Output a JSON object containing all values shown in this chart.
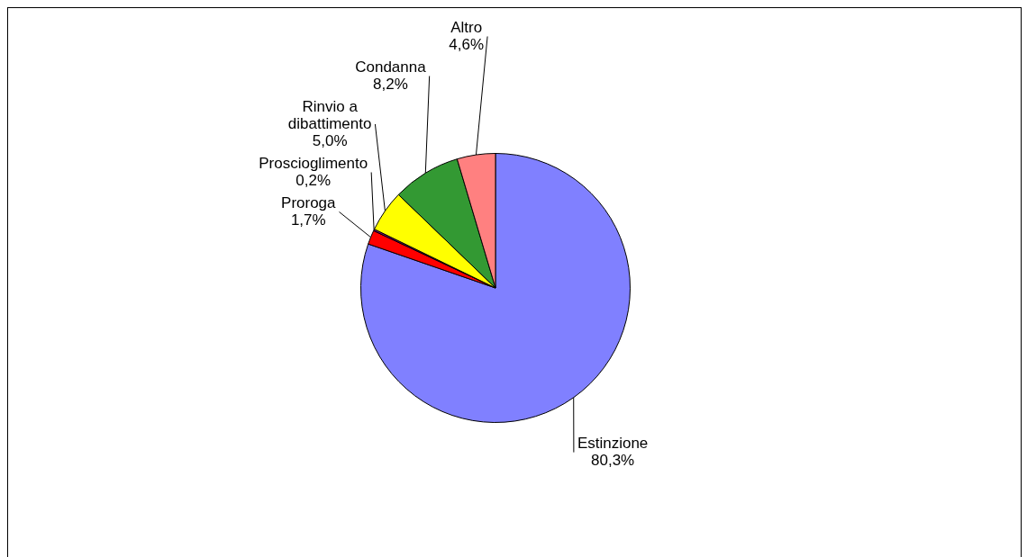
{
  "chart_data": {
    "type": "pie",
    "categories": [
      "Estinzione",
      "Proroga",
      "Proscioglimento",
      "Rinvio a dibattimento",
      "Condanna",
      "Altro"
    ],
    "values": [
      80.3,
      1.7,
      0.2,
      5.0,
      8.2,
      4.6
    ],
    "colors": [
      "#8080ff",
      "#ff0000",
      "#800080",
      "#ffff00",
      "#339933",
      "#ff8080"
    ],
    "value_labels": [
      "80,3%",
      "1,7%",
      "0,2%",
      "5,0%",
      "8,2%",
      "4,6%"
    ],
    "legend": false
  }
}
